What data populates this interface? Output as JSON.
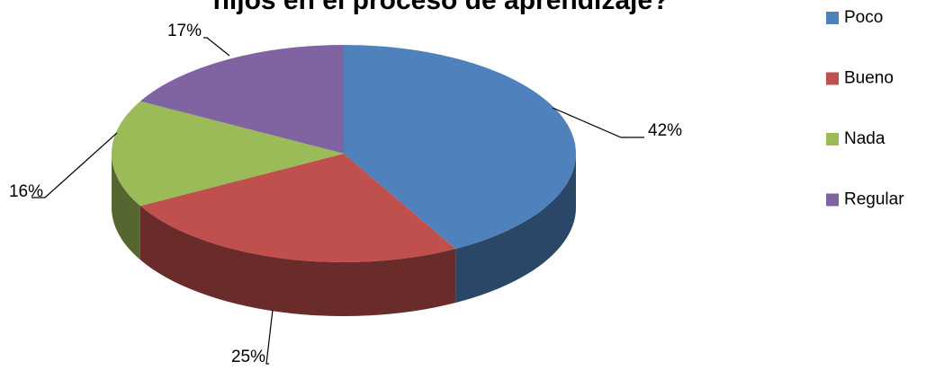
{
  "chart_data": {
    "type": "pie",
    "title": "hijos en el proceso de aprendizaje?",
    "categories": [
      "Poco",
      "Bueno",
      "Nada",
      "Regular"
    ],
    "values": [
      42,
      25,
      16,
      17
    ],
    "value_labels": [
      "42%",
      "25%",
      "16%",
      "17%"
    ],
    "colors": [
      "#4f81bd",
      "#c0504d",
      "#9bbb59",
      "#8064a2"
    ],
    "legend": "right"
  }
}
